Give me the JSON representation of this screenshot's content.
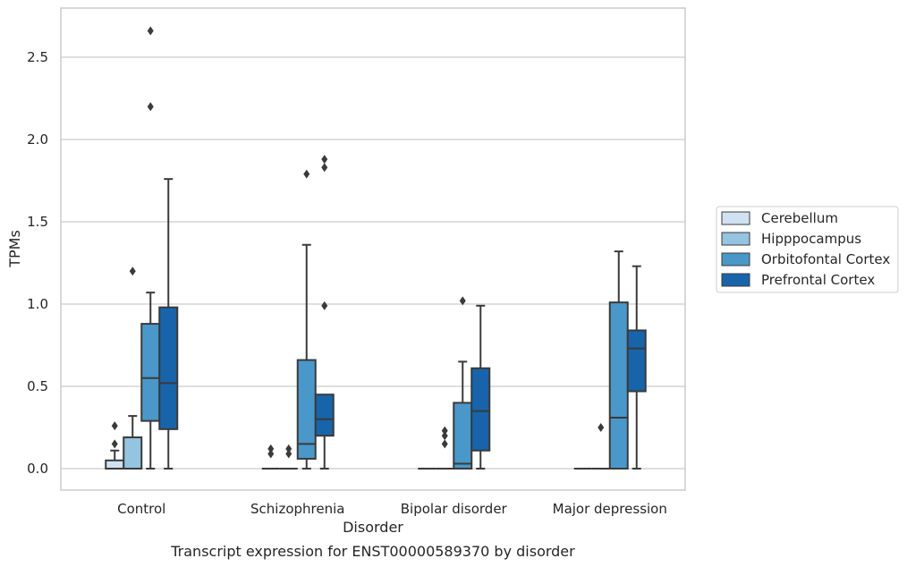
{
  "chart_data": {
    "type": "boxplot",
    "caption": "Transcript expression for ENST00000589370 by disorder",
    "xlabel": "Disorder",
    "ylabel": "TPMs",
    "ylim": [
      -0.13,
      2.8
    ],
    "yticks": [
      0.0,
      0.5,
      1.0,
      1.5,
      2.0,
      2.5
    ],
    "ytick_labels": [
      "0.0",
      "0.5",
      "1.0",
      "1.5",
      "2.0",
      "2.5"
    ],
    "grid": "horizontal",
    "legend_position": "right",
    "categories": [
      "Control",
      "Schizophrenia",
      "Bipolar disorder",
      "Major depression"
    ],
    "series": [
      {
        "name": "Cerebellum",
        "color": "#d0e1f2",
        "boxes": [
          {
            "whisker_low": 0.0,
            "q1": 0.0,
            "median": 0.0,
            "q3": 0.05,
            "whisker_high": 0.11,
            "outliers": [
              0.15,
              0.26
            ]
          },
          {
            "whisker_low": 0.0,
            "q1": 0.0,
            "median": 0.0,
            "q3": 0.0,
            "whisker_high": 0.0,
            "outliers": [
              0.09,
              0.12
            ]
          },
          {
            "whisker_low": 0.0,
            "q1": 0.0,
            "median": 0.0,
            "q3": 0.0,
            "whisker_high": 0.0,
            "outliers": []
          },
          {
            "whisker_low": 0.0,
            "q1": 0.0,
            "median": 0.0,
            "q3": 0.0,
            "whisker_high": 0.0,
            "outliers": []
          }
        ]
      },
      {
        "name": "Hipppocampus",
        "color": "#94c4df",
        "boxes": [
          {
            "whisker_low": 0.0,
            "q1": 0.0,
            "median": 0.0,
            "q3": 0.19,
            "whisker_high": 0.32,
            "outliers": [
              1.2
            ]
          },
          {
            "whisker_low": 0.0,
            "q1": 0.0,
            "median": 0.0,
            "q3": 0.0,
            "whisker_high": 0.0,
            "outliers": [
              0.09,
              0.12
            ]
          },
          {
            "whisker_low": 0.0,
            "q1": 0.0,
            "median": 0.0,
            "q3": 0.0,
            "whisker_high": 0.0,
            "outliers": [
              0.15,
              0.2,
              0.23
            ]
          },
          {
            "whisker_low": 0.0,
            "q1": 0.0,
            "median": 0.0,
            "q3": 0.0,
            "whisker_high": 0.0,
            "outliers": [
              0.25
            ]
          }
        ]
      },
      {
        "name": "Orbitofontal Cortex",
        "color": "#4a98c9",
        "boxes": [
          {
            "whisker_low": 0.0,
            "q1": 0.29,
            "median": 0.55,
            "q3": 0.88,
            "whisker_high": 1.07,
            "outliers": [
              2.2,
              2.66
            ]
          },
          {
            "whisker_low": 0.0,
            "q1": 0.06,
            "median": 0.15,
            "q3": 0.66,
            "whisker_high": 1.36,
            "outliers": [
              1.79
            ]
          },
          {
            "whisker_low": 0.0,
            "q1": 0.0,
            "median": 0.03,
            "q3": 0.4,
            "whisker_high": 0.65,
            "outliers": [
              1.02
            ]
          },
          {
            "whisker_low": 0.0,
            "q1": 0.0,
            "median": 0.31,
            "q3": 1.01,
            "whisker_high": 1.32,
            "outliers": []
          }
        ]
      },
      {
        "name": "Prefrontal Cortex",
        "color": "#1764ab",
        "boxes": [
          {
            "whisker_low": 0.0,
            "q1": 0.24,
            "median": 0.52,
            "q3": 0.98,
            "whisker_high": 1.76,
            "outliers": []
          },
          {
            "whisker_low": 0.0,
            "q1": 0.2,
            "median": 0.3,
            "q3": 0.45,
            "whisker_high": 0.45,
            "outliers": [
              0.99,
              1.83,
              1.88
            ]
          },
          {
            "whisker_low": 0.0,
            "q1": 0.11,
            "median": 0.35,
            "q3": 0.61,
            "whisker_high": 0.99,
            "outliers": []
          },
          {
            "whisker_low": 0.0,
            "q1": 0.47,
            "median": 0.73,
            "q3": 0.84,
            "whisker_high": 1.23,
            "outliers": []
          }
        ]
      }
    ]
  }
}
